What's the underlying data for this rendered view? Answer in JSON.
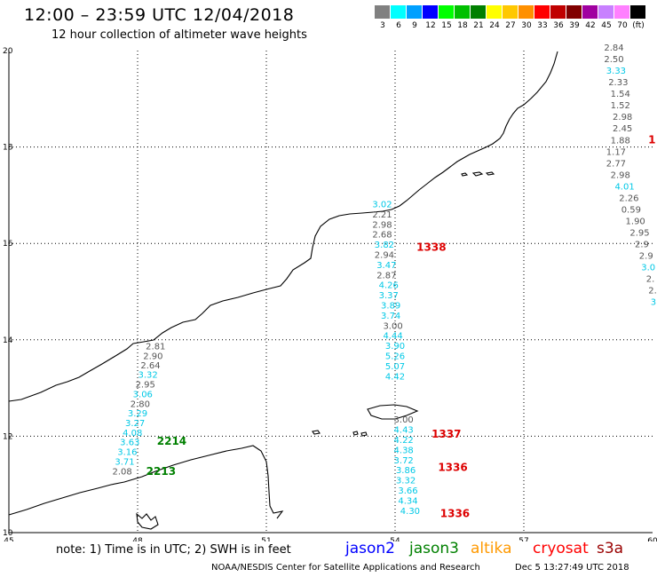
{
  "header": {
    "title": "12:00  –  23:59 UTC 12/04/2018",
    "subtitle": "12 hour collection of altimeter wave heights"
  },
  "color_scale": {
    "unit": "(ft)",
    "bins": [
      {
        "label": "3",
        "color": "#808080"
      },
      {
        "label": "6",
        "color": "#00ffff"
      },
      {
        "label": "9",
        "color": "#00a0ff"
      },
      {
        "label": "12",
        "color": "#0000ff"
      },
      {
        "label": "15",
        "color": "#00ff00"
      },
      {
        "label": "18",
        "color": "#00c000"
      },
      {
        "label": "21",
        "color": "#008000"
      },
      {
        "label": "24",
        "color": "#ffff00"
      },
      {
        "label": "27",
        "color": "#ffc800"
      },
      {
        "label": "30",
        "color": "#ff9000"
      },
      {
        "label": "33",
        "color": "#ff0000"
      },
      {
        "label": "36",
        "color": "#c00000"
      },
      {
        "label": "39",
        "color": "#800000"
      },
      {
        "label": "42",
        "color": "#a000a0"
      },
      {
        "label": "45",
        "color": "#c880ff"
      },
      {
        "label": "70",
        "color": "#ff80ff"
      },
      {
        "label": "",
        "color": "#000000"
      }
    ]
  },
  "axes": {
    "lon_ticks": [
      "45",
      "48",
      "51",
      "54",
      "57",
      "60"
    ],
    "lat_ticks": [
      "20",
      "18",
      "16",
      "14",
      "12",
      "10"
    ],
    "lon_range": [
      45,
      60
    ],
    "lat_range": [
      10,
      20
    ]
  },
  "tracks": [
    {
      "id": "west",
      "points": [
        {
          "lon": 48.42,
          "lat": 13.8,
          "v": "2.81",
          "c": "gray"
        },
        {
          "lon": 48.36,
          "lat": 13.6,
          "v": "2.90",
          "c": "gray"
        },
        {
          "lon": 48.3,
          "lat": 13.41,
          "v": "2.64",
          "c": "gray"
        },
        {
          "lon": 48.24,
          "lat": 13.21,
          "v": "3.32",
          "c": "cyan"
        },
        {
          "lon": 48.18,
          "lat": 13.01,
          "v": "2.95",
          "c": "gray"
        },
        {
          "lon": 48.12,
          "lat": 12.81,
          "v": "3.06",
          "c": "cyan"
        },
        {
          "lon": 48.06,
          "lat": 12.61,
          "v": "2.80",
          "c": "gray"
        },
        {
          "lon": 48.0,
          "lat": 12.41,
          "v": "3.29",
          "c": "cyan"
        },
        {
          "lon": 47.94,
          "lat": 12.21,
          "v": "3.27",
          "c": "cyan"
        },
        {
          "lon": 47.88,
          "lat": 12.01,
          "v": "4.08",
          "c": "cyan"
        },
        {
          "lon": 47.82,
          "lat": 11.81,
          "v": "3.63",
          "c": "cyan"
        },
        {
          "lon": 47.76,
          "lat": 11.61,
          "v": "3.16",
          "c": "cyan"
        },
        {
          "lon": 47.7,
          "lat": 11.41,
          "v": "3.71",
          "c": "cyan"
        },
        {
          "lon": 47.64,
          "lat": 11.21,
          "v": "2.08",
          "c": "gray"
        }
      ]
    },
    {
      "id": "central",
      "points": [
        {
          "lon": 53.7,
          "lat": 16.75,
          "v": "3.02",
          "c": "cyan"
        },
        {
          "lon": 53.7,
          "lat": 16.54,
          "v": "2.21",
          "c": "gray"
        },
        {
          "lon": 53.7,
          "lat": 16.33,
          "v": "2.98",
          "c": "gray"
        },
        {
          "lon": 53.7,
          "lat": 16.12,
          "v": "2.68",
          "c": "gray"
        },
        {
          "lon": 53.75,
          "lat": 15.91,
          "v": "3.82",
          "c": "cyan"
        },
        {
          "lon": 53.75,
          "lat": 15.7,
          "v": "2.94",
          "c": "gray"
        },
        {
          "lon": 53.8,
          "lat": 15.49,
          "v": "3.47",
          "c": "cyan"
        },
        {
          "lon": 53.8,
          "lat": 15.28,
          "v": "2.87",
          "c": "gray"
        },
        {
          "lon": 53.85,
          "lat": 15.07,
          "v": "4.26",
          "c": "cyan"
        },
        {
          "lon": 53.85,
          "lat": 14.86,
          "v": "3.37",
          "c": "cyan"
        },
        {
          "lon": 53.9,
          "lat": 14.65,
          "v": "3.89",
          "c": "cyan"
        },
        {
          "lon": 53.9,
          "lat": 14.44,
          "v": "3.74",
          "c": "cyan"
        },
        {
          "lon": 53.95,
          "lat": 14.23,
          "v": "3.00",
          "c": "gray"
        },
        {
          "lon": 53.95,
          "lat": 14.02,
          "v": "4.44",
          "c": "cyan"
        },
        {
          "lon": 54.0,
          "lat": 13.81,
          "v": "3.90",
          "c": "cyan"
        },
        {
          "lon": 54.0,
          "lat": 13.6,
          "v": "5.26",
          "c": "cyan"
        },
        {
          "lon": 54.0,
          "lat": 13.39,
          "v": "5.07",
          "c": "cyan"
        },
        {
          "lon": 54.0,
          "lat": 13.18,
          "v": "4.42",
          "c": "cyan"
        },
        {
          "lon": 54.2,
          "lat": 12.28,
          "v": "3.00",
          "c": "gray"
        },
        {
          "lon": 54.2,
          "lat": 12.07,
          "v": "4.43",
          "c": "cyan"
        },
        {
          "lon": 54.2,
          "lat": 11.86,
          "v": "4.22",
          "c": "cyan"
        },
        {
          "lon": 54.2,
          "lat": 11.65,
          "v": "4.38",
          "c": "cyan"
        },
        {
          "lon": 54.2,
          "lat": 11.44,
          "v": "3.72",
          "c": "cyan"
        },
        {
          "lon": 54.25,
          "lat": 11.23,
          "v": "3.86",
          "c": "cyan"
        },
        {
          "lon": 54.25,
          "lat": 11.02,
          "v": "3.32",
          "c": "cyan"
        },
        {
          "lon": 54.3,
          "lat": 10.81,
          "v": "3.66",
          "c": "cyan"
        },
        {
          "lon": 54.3,
          "lat": 10.6,
          "v": "4.34",
          "c": "cyan"
        },
        {
          "lon": 54.35,
          "lat": 10.39,
          "v": "4.30",
          "c": "cyan"
        }
      ]
    },
    {
      "id": "east",
      "points": [
        {
          "lon": 59.1,
          "lat": 20.0,
          "v": "2.84",
          "c": "gray"
        },
        {
          "lon": 59.1,
          "lat": 19.76,
          "v": "2.50",
          "c": "gray"
        },
        {
          "lon": 59.15,
          "lat": 19.52,
          "v": "3.33",
          "c": "cyan"
        },
        {
          "lon": 59.2,
          "lat": 19.28,
          "v": "2.33",
          "c": "gray"
        },
        {
          "lon": 59.25,
          "lat": 19.04,
          "v": "1.54",
          "c": "gray"
        },
        {
          "lon": 59.25,
          "lat": 18.8,
          "v": "1.52",
          "c": "gray"
        },
        {
          "lon": 59.3,
          "lat": 18.56,
          "v": "2.98",
          "c": "gray"
        },
        {
          "lon": 59.3,
          "lat": 18.32,
          "v": "2.45",
          "c": "gray"
        },
        {
          "lon": 59.25,
          "lat": 18.08,
          "v": "1.88",
          "c": "gray"
        },
        {
          "lon": 59.15,
          "lat": 17.84,
          "v": "1.17",
          "c": "gray"
        },
        {
          "lon": 59.15,
          "lat": 17.6,
          "v": "2.77",
          "c": "gray"
        },
        {
          "lon": 59.25,
          "lat": 17.36,
          "v": "2.98",
          "c": "gray"
        },
        {
          "lon": 59.35,
          "lat": 17.12,
          "v": "4.01",
          "c": "cyan"
        },
        {
          "lon": 59.45,
          "lat": 16.88,
          "v": "2.26",
          "c": "gray"
        },
        {
          "lon": 59.5,
          "lat": 16.64,
          "v": "0.59",
          "c": "gray"
        },
        {
          "lon": 59.6,
          "lat": 16.4,
          "v": "1.90",
          "c": "gray"
        },
        {
          "lon": 59.7,
          "lat": 16.16,
          "v": "2.95",
          "c": "gray"
        },
        {
          "lon": 59.75,
          "lat": 15.92,
          "v": "2.9",
          "c": "gray"
        },
        {
          "lon": 59.85,
          "lat": 15.68,
          "v": "2.9",
          "c": "gray"
        },
        {
          "lon": 59.9,
          "lat": 15.44,
          "v": "3.0",
          "c": "cyan"
        },
        {
          "lon": 59.95,
          "lat": 15.2,
          "v": "2.",
          "c": "gray"
        },
        {
          "lon": 60.0,
          "lat": 14.96,
          "v": "2.",
          "c": "gray"
        },
        {
          "lon": 60.02,
          "lat": 14.72,
          "v": "3",
          "c": "cyan"
        }
      ]
    }
  ],
  "markers": [
    {
      "lon": 48.45,
      "lat": 11.82,
      "text": "2214",
      "c": "green"
    },
    {
      "lon": 48.2,
      "lat": 11.2,
      "text": "2213",
      "c": "green"
    },
    {
      "lon": 54.5,
      "lat": 15.85,
      "text": "1338",
      "c": "red"
    },
    {
      "lon": 54.85,
      "lat": 11.97,
      "text": "1337",
      "c": "red"
    },
    {
      "lon": 55.0,
      "lat": 11.28,
      "text": "1336",
      "c": "red"
    },
    {
      "lon": 55.05,
      "lat": 10.32,
      "text": "1336",
      "c": "red"
    },
    {
      "lon": 59.9,
      "lat": 18.08,
      "text": "1",
      "c": "red"
    }
  ],
  "note": "note:  1) Time is in UTC;  2) SWH is in feet",
  "satellites": [
    {
      "name": "jason2",
      "color": "#0000ff"
    },
    {
      "name": "jason3",
      "color": "#008000"
    },
    {
      "name": "altika",
      "color": "#ff9900"
    },
    {
      "name": "cryosat",
      "color": "#ff0000"
    },
    {
      "name": "s3a",
      "color": "#990000"
    }
  ],
  "footer": {
    "credit": "NOAA/NESDIS Center for Satellite Applications and Research",
    "timestamp": "Dec  5 13:27:49 UTC 2018"
  }
}
